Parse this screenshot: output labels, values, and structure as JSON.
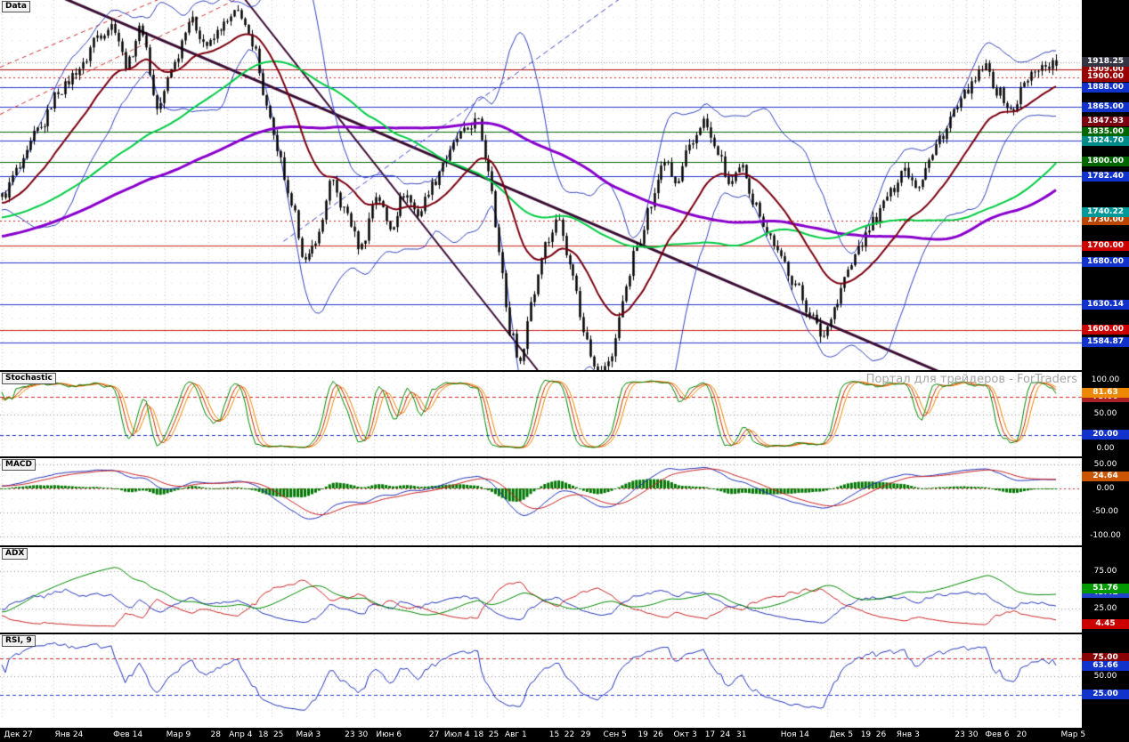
{
  "watermark": "Портал для трейдеров - ForTraders",
  "panels": {
    "main_label": "Data",
    "stochastic_label": "Stochastic",
    "macd_label": "MACD",
    "adx_label": "ADX",
    "rsi_label": "RSI, 9"
  },
  "x_axis": {
    "labels": [
      {
        "text": "Дек 27",
        "f": 0.002
      },
      {
        "text": "Янв 24",
        "f": 0.049
      },
      {
        "text": "Фев 14",
        "f": 0.103
      },
      {
        "text": "Мар 9",
        "f": 0.152
      },
      {
        "text": "28",
        "f": 0.193
      },
      {
        "text": "Апр 4",
        "f": 0.21
      },
      {
        "text": "18",
        "f": 0.237
      },
      {
        "text": "25",
        "f": 0.251
      },
      {
        "text": "Май 3",
        "f": 0.272
      },
      {
        "text": "23",
        "f": 0.317
      },
      {
        "text": "30",
        "f": 0.329
      },
      {
        "text": "Июн 6",
        "f": 0.346
      },
      {
        "text": "27",
        "f": 0.395
      },
      {
        "text": "Июл 4",
        "f": 0.409
      },
      {
        "text": "18",
        "f": 0.436
      },
      {
        "text": "25",
        "f": 0.45
      },
      {
        "text": "Авг 1",
        "f": 0.465
      },
      {
        "text": "15",
        "f": 0.506
      },
      {
        "text": "22",
        "f": 0.52
      },
      {
        "text": "29",
        "f": 0.535
      },
      {
        "text": "Сен 5",
        "f": 0.556
      },
      {
        "text": "19",
        "f": 0.588
      },
      {
        "text": "26",
        "f": 0.602
      },
      {
        "text": "Окт 3",
        "f": 0.621
      },
      {
        "text": "17",
        "f": 0.65
      },
      {
        "text": "24",
        "f": 0.664
      },
      {
        "text": "31",
        "f": 0.679
      },
      {
        "text": "Ноя 14",
        "f": 0.72
      },
      {
        "text": "Дек 5",
        "f": 0.765
      },
      {
        "text": "19",
        "f": 0.794
      },
      {
        "text": "26",
        "f": 0.808
      },
      {
        "text": "Янв 3",
        "f": 0.827
      },
      {
        "text": "23",
        "f": 0.881
      },
      {
        "text": "30",
        "f": 0.893
      },
      {
        "text": "Фев 6",
        "f": 0.909
      },
      {
        "text": "20",
        "f": 0.938
      },
      {
        "text": "Мар 5",
        "f": 0.979
      }
    ]
  },
  "scales": {
    "main": [
      {
        "label": "1918.25",
        "value": 1918.25,
        "bg": "#333344",
        "z": 3
      },
      {
        "label": "1909.00",
        "value": 1909,
        "bg": "#990000"
      },
      {
        "label": "1900.00",
        "value": 1900,
        "bg": "#990000"
      },
      {
        "label": "1888.00",
        "value": 1888,
        "bg": "#1133cc"
      },
      {
        "label": "1865.00",
        "value": 1865,
        "bg": "#1133cc"
      },
      {
        "label": "1847.93",
        "value": 1847.93,
        "bg": "#7a0010",
        "z": 3
      },
      {
        "label": "1835.00",
        "value": 1835,
        "bg": "#006600"
      },
      {
        "label": "1824.70",
        "value": 1824.7,
        "bg": "#008b8b"
      },
      {
        "label": "1800.00",
        "value": 1800,
        "bg": "#006600"
      },
      {
        "label": "1782.40",
        "value": 1782.4,
        "bg": "#1133cc"
      },
      {
        "label": "1740.22",
        "value": 1740.22,
        "bg": "#009999",
        "z": 3
      },
      {
        "label": "1730.00",
        "value": 1730,
        "bg": "#bb4400"
      },
      {
        "label": "1700.00",
        "value": 1700,
        "bg": "#cc0000"
      },
      {
        "label": "1680.00",
        "value": 1680,
        "bg": "#1133cc"
      },
      {
        "label": "1630.14",
        "value": 1630.14,
        "bg": "#1133cc"
      },
      {
        "label": "1600.00",
        "value": 1600,
        "bg": "#cc0000"
      },
      {
        "label": "1584.87",
        "value": 1584.87,
        "bg": "#1133cc"
      }
    ],
    "stochastic": [
      {
        "label": "100.00",
        "value": 100
      },
      {
        "label": "75.00",
        "value": 75,
        "bg": "#aa2222"
      },
      {
        "label": "81.63",
        "value": 81.63,
        "bg": "#ee8800",
        "z": 3
      },
      {
        "label": "50.00",
        "value": 50
      },
      {
        "label": "20.00",
        "value": 20,
        "bg": "#1133cc"
      },
      {
        "label": "0.00",
        "value": 0
      }
    ],
    "macd": [
      {
        "label": "50.00",
        "value": 50
      },
      {
        "label": "24.64",
        "value": 24.64,
        "bg": "#cc5500",
        "z": 3
      },
      {
        "label": "0.00",
        "value": 0
      },
      {
        "label": "-50.00",
        "value": -50
      },
      {
        "label": "-100.00",
        "value": -100
      }
    ],
    "adx": [
      {
        "label": "75.00",
        "value": 75
      },
      {
        "label": "45.42",
        "value": 45.42,
        "bg": "#2244cc"
      },
      {
        "label": "51.76",
        "value": 51.76,
        "bg": "#009900",
        "z": 3
      },
      {
        "label": "25.00",
        "value": 25
      },
      {
        "label": "4.45",
        "value": 4.45,
        "bg": "#cc0000"
      }
    ],
    "rsi": [
      {
        "label": "75.00",
        "value": 75,
        "bg": "#880000"
      },
      {
        "label": "63.66",
        "value": 63.66,
        "bg": "#1133cc",
        "z": 3
      },
      {
        "label": "50.00",
        "value": 50
      },
      {
        "label": "25.00",
        "value": 25,
        "bg": "#1133cc"
      }
    ]
  },
  "chart_data": [
    {
      "type": "candlestick",
      "panel": "main",
      "name": "Data",
      "range": [
        1552,
        1992
      ],
      "pad": 0,
      "candle_count": 300,
      "wiggle": 13,
      "prehistory_start": 1640,
      "price_path": [
        [
          0.0,
          1758
        ],
        [
          0.015,
          1790
        ],
        [
          0.035,
          1838
        ],
        [
          0.055,
          1885
        ],
        [
          0.075,
          1912
        ],
        [
          0.09,
          1950
        ],
        [
          0.105,
          1962
        ],
        [
          0.118,
          1915
        ],
        [
          0.132,
          1958
        ],
        [
          0.148,
          1862
        ],
        [
          0.162,
          1915
        ],
        [
          0.178,
          1968
        ],
        [
          0.195,
          1938
        ],
        [
          0.21,
          1962
        ],
        [
          0.225,
          1978
        ],
        [
          0.24,
          1930
        ],
        [
          0.252,
          1862
        ],
        [
          0.262,
          1805
        ],
        [
          0.275,
          1742
        ],
        [
          0.288,
          1680
        ],
        [
          0.3,
          1712
        ],
        [
          0.312,
          1775
        ],
        [
          0.325,
          1742
        ],
        [
          0.34,
          1698
        ],
        [
          0.355,
          1760
        ],
        [
          0.368,
          1722
        ],
        [
          0.382,
          1762
        ],
        [
          0.395,
          1738
        ],
        [
          0.408,
          1772
        ],
        [
          0.42,
          1802
        ],
        [
          0.435,
          1832
        ],
        [
          0.45,
          1848
        ],
        [
          0.462,
          1792
        ],
        [
          0.472,
          1688
        ],
        [
          0.482,
          1598
        ],
        [
          0.492,
          1562
        ],
        [
          0.502,
          1635
        ],
        [
          0.515,
          1702
        ],
        [
          0.528,
          1732
        ],
        [
          0.54,
          1672
        ],
        [
          0.552,
          1602
        ],
        [
          0.565,
          1545
        ],
        [
          0.578,
          1568
        ],
        [
          0.59,
          1642
        ],
        [
          0.602,
          1700
        ],
        [
          0.615,
          1748
        ],
        [
          0.628,
          1802
        ],
        [
          0.64,
          1772
        ],
        [
          0.652,
          1815
        ],
        [
          0.665,
          1848
        ],
        [
          0.678,
          1812
        ],
        [
          0.69,
          1772
        ],
        [
          0.702,
          1792
        ],
        [
          0.715,
          1748
        ],
        [
          0.728,
          1712
        ],
        [
          0.74,
          1682
        ],
        [
          0.752,
          1655
        ],
        [
          0.765,
          1622
        ],
        [
          0.778,
          1592
        ],
        [
          0.79,
          1628
        ],
        [
          0.802,
          1668
        ],
        [
          0.815,
          1702
        ],
        [
          0.828,
          1732
        ],
        [
          0.842,
          1762
        ],
        [
          0.855,
          1792
        ],
        [
          0.868,
          1772
        ],
        [
          0.88,
          1802
        ],
        [
          0.892,
          1832
        ],
        [
          0.905,
          1862
        ],
        [
          0.918,
          1888
        ],
        [
          0.932,
          1912
        ],
        [
          0.945,
          1882
        ],
        [
          0.958,
          1858
        ],
        [
          0.97,
          1892
        ],
        [
          0.982,
          1912
        ],
        [
          1.0,
          1916
        ]
      ],
      "last_price": 1918.25,
      "bollinger": {
        "period": 20,
        "stddev": 2,
        "color": "#3344bb"
      },
      "ma_overlays": [
        {
          "kind": "sma",
          "period": 130,
          "color": "#8800cc",
          "width": 3,
          "current": 1740.22
        },
        {
          "kind": "sma",
          "period": 70,
          "color": "#00cc44",
          "width": 2
        },
        {
          "kind": "ema",
          "period": 24,
          "color": "#7a0010",
          "width": 2,
          "current": 1847.93
        }
      ],
      "levels": [
        {
          "value": 1918.25,
          "color": "#999999",
          "dash": [
            1,
            2
          ]
        },
        {
          "value": 1909,
          "color": "#aa0000"
        },
        {
          "value": 1900,
          "color": "#cc2222",
          "dash": [
            2,
            3
          ]
        },
        {
          "value": 1888,
          "color": "#2233cc"
        },
        {
          "value": 1865,
          "color": "#2233cc"
        },
        {
          "value": 1835,
          "color": "#006600"
        },
        {
          "value": 1824.7,
          "color": "#2233cc"
        },
        {
          "value": 1800,
          "color": "#006600"
        },
        {
          "value": 1782.4,
          "color": "#2233cc"
        },
        {
          "value": 1730,
          "color": "#cc2222",
          "dash": [
            2,
            3
          ]
        },
        {
          "value": 1700,
          "color": "#cc2222"
        },
        {
          "value": 1680,
          "color": "#2233cc"
        },
        {
          "value": 1630.14,
          "color": "#2233cc"
        },
        {
          "value": 1600,
          "color": "#cc2222"
        },
        {
          "value": 1584.87,
          "color": "#2233cc"
        }
      ],
      "trendlines": [
        {
          "x1": 0.048,
          "p1": 2000,
          "x2": 0.872,
          "p2": 1548,
          "color": "#3a0d33",
          "width": 3
        },
        {
          "x1": 0.222,
          "p1": 2000,
          "x2": 0.497,
          "p2": 1552,
          "color": "#3a0d33",
          "width": 2
        },
        {
          "x1": 0.262,
          "p1": 1705,
          "x2": 0.58,
          "p2": 2000,
          "color": "#4444cc",
          "width": 1,
          "dash": [
            6,
            4
          ]
        },
        {
          "x1": 0.0,
          "p1": 1912,
          "x2": 0.16,
          "p2": 2000,
          "color": "#cc3333",
          "width": 1,
          "dash": [
            5,
            4
          ]
        },
        {
          "x1": 0.0,
          "p1": 1856,
          "x2": 0.23,
          "p2": 2000,
          "color": "#cc3333",
          "width": 1,
          "dash": [
            5,
            4
          ]
        }
      ]
    },
    {
      "type": "line",
      "panel": "stochastic",
      "name": "Stochastic",
      "range": [
        0,
        100
      ],
      "pad": 9,
      "period": 9,
      "lines": [
        {
          "id": "k",
          "color": "#008800",
          "width": 1
        },
        {
          "id": "d",
          "color": "#cc3300",
          "width": 1
        },
        {
          "id": "slow",
          "color": "#ee8800",
          "width": 1
        }
      ],
      "levels": [
        {
          "value": 75,
          "color": "#cc2222",
          "dash": [
            4,
            3
          ]
        },
        {
          "value": 50,
          "color": "#999999",
          "dash": [
            1,
            3
          ]
        },
        {
          "value": 20,
          "color": "#2233cc",
          "dash": [
            4,
            3
          ]
        }
      ],
      "current": 81.63
    },
    {
      "type": "macd",
      "panel": "macd",
      "name": "MACD",
      "range": [
        -112,
        56
      ],
      "pad": 4,
      "fast": 12,
      "slow": 26,
      "signal": 9,
      "colors": {
        "macd": "#2233bb",
        "signal": "#cc2222",
        "histogram": "#007700"
      },
      "levels": [
        {
          "value": 50,
          "color": "#999999",
          "dash": [
            1,
            3
          ]
        },
        {
          "value": 0,
          "color": "#cc2222",
          "dash": [
            2,
            3
          ]
        },
        {
          "value": -50,
          "color": "#999999",
          "dash": [
            1,
            3
          ]
        },
        {
          "value": -100,
          "color": "#999999",
          "dash": [
            1,
            3
          ]
        }
      ],
      "current": 24.64
    },
    {
      "type": "line",
      "panel": "adx",
      "name": "ADX",
      "range": [
        0,
        100
      ],
      "pad": 6,
      "period": 14,
      "colors": {
        "adx": "#008800",
        "plus_di": "#2233bb",
        "minus_di": "#cc2222"
      },
      "levels": [
        {
          "value": 75,
          "color": "#999999",
          "dash": [
            1,
            3
          ]
        },
        {
          "value": 25,
          "color": "#999999",
          "dash": [
            1,
            3
          ]
        }
      ],
      "current": {
        "adx": 51.76,
        "plus_di": 45.42,
        "minus_di": 4.45
      }
    },
    {
      "type": "line",
      "panel": "rsi",
      "name": "RSI, 9",
      "range": [
        0,
        100
      ],
      "pad": 6,
      "period": 9,
      "color": "#2233bb",
      "levels": [
        {
          "value": 75,
          "color": "#cc2222",
          "dash": [
            4,
            3
          ]
        },
        {
          "value": 50,
          "color": "#999999",
          "dash": [
            1,
            3
          ]
        },
        {
          "value": 25,
          "color": "#2233cc",
          "dash": [
            4,
            3
          ]
        }
      ],
      "current": 63.66
    }
  ]
}
